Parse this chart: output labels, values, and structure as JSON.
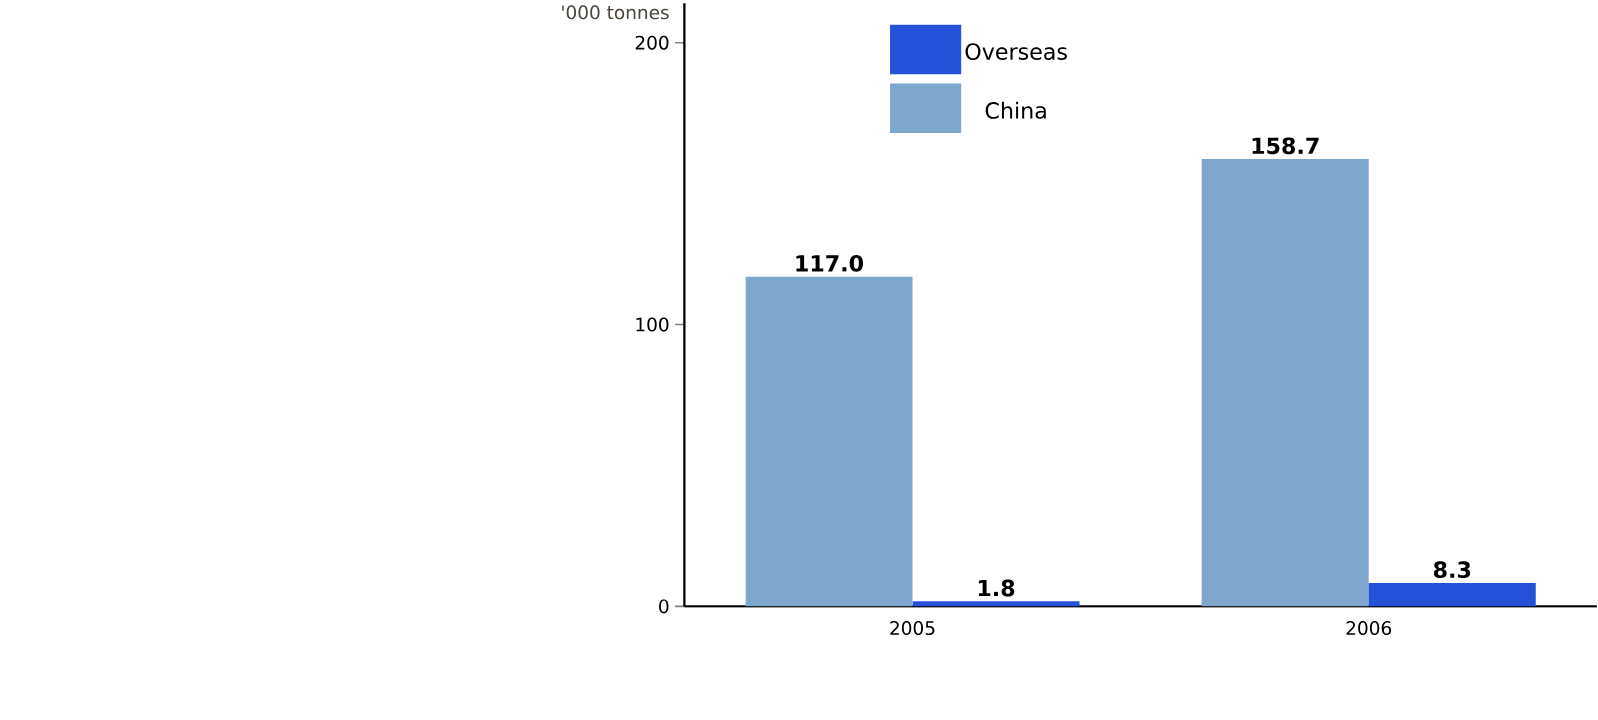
{
  "chart_data": {
    "type": "bar",
    "ylabel": "'000 tonnes",
    "categories": [
      "2005",
      "2006"
    ],
    "series": [
      {
        "name": "China",
        "color": "#7fa6cc",
        "values": [
          117.0,
          158.7
        ],
        "value_labels": [
          "117.0",
          "158.7"
        ]
      },
      {
        "name": "Overseas",
        "color": "#2552d8",
        "values": [
          1.8,
          8.3
        ],
        "value_labels": [
          "1.8",
          "8.3"
        ]
      }
    ],
    "ylim": [
      0,
      214
    ],
    "yticks": [
      0,
      100,
      200
    ],
    "legend": "top",
    "grid": false
  }
}
